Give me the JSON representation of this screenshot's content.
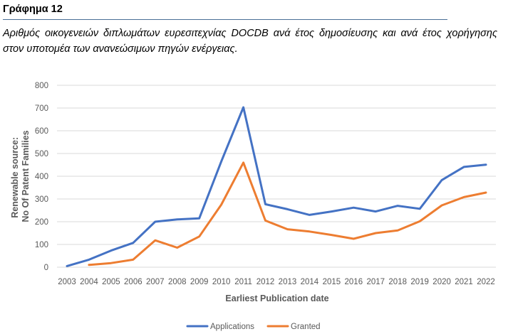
{
  "figure": {
    "label": "Γράφημα 12",
    "caption": "Αριθμός οικογενειών διπλωμάτων ευρεσιτεχνίας DOCDB ανά έτος δημοσίευσης και ανά έτος χορήγησης στον υποτομέα των ανανεώσιμων πηγών ενέργειας."
  },
  "chart_data": {
    "type": "line",
    "title": "",
    "xlabel": "Earliest Publication date",
    "ylabel_line1": "Renewable source:",
    "ylabel_line2": "No Of Patent Families",
    "ylim": [
      0,
      800
    ],
    "yticks": [
      "0",
      "100",
      "200",
      "300",
      "400",
      "500",
      "600",
      "700",
      "800"
    ],
    "grid": "horizontal",
    "legend_position": "bottom-center",
    "categories": [
      "2003",
      "2004",
      "2005",
      "2006",
      "2007",
      "2008",
      "2009",
      "2010",
      "2011",
      "2012",
      "2013",
      "2014",
      "2015",
      "2016",
      "2017",
      "2018",
      "2019",
      "2020",
      "2021",
      "2022"
    ],
    "series": [
      {
        "name": "Applications",
        "color": "#4472c4",
        "values": [
          5,
          33,
          73,
          107,
          200,
          210,
          215,
          465,
          703,
          277,
          255,
          230,
          245,
          262,
          245,
          270,
          257,
          383,
          441,
          451
        ]
      },
      {
        "name": "Granted",
        "color": "#ed7d31",
        "values": [
          null,
          10,
          18,
          33,
          118,
          86,
          135,
          275,
          460,
          205,
          167,
          157,
          142,
          125,
          150,
          162,
          202,
          272,
          308,
          328
        ]
      }
    ]
  }
}
